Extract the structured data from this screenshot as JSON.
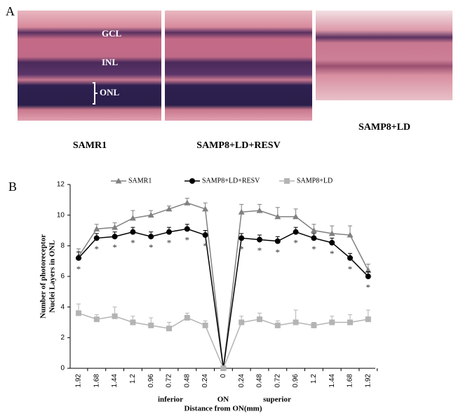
{
  "panel_a": {
    "label": "A",
    "layers": [
      "GCL",
      "INL",
      "ONL"
    ],
    "images": [
      "SAMR1",
      "SAMP8+LD+RESV",
      "SAMP8+LD"
    ]
  },
  "chart_data": {
    "type": "line",
    "panel_label": "B",
    "ylabel": [
      "Number of photoreceptor",
      "Nuclei Layers in ONL"
    ],
    "xlabel": "Distance from ON(mm)",
    "annotations": [
      "inferior",
      "ON",
      "superior"
    ],
    "categories": [
      "1.92",
      "1.68",
      "1.44",
      "1.2",
      "0.96",
      "0.72",
      "0.48",
      "0.24",
      "0",
      "0.24",
      "0.48",
      "0.72",
      "0.96",
      "1.2",
      "1.44",
      "1.68",
      "1.92"
    ],
    "ylim": [
      0,
      12
    ],
    "yticks": [
      0,
      2,
      4,
      6,
      8,
      10,
      12
    ],
    "legend": "top",
    "grid": false,
    "series": [
      {
        "name": "SAMR1",
        "color": "#808080",
        "marker": "triangle",
        "values": [
          7.3,
          9.1,
          9.2,
          9.8,
          10.0,
          10.4,
          10.8,
          10.4,
          0,
          10.2,
          10.3,
          9.9,
          9.9,
          9.0,
          8.8,
          8.7,
          6.4
        ],
        "errors": [
          0.5,
          0.3,
          0.3,
          0.5,
          0.3,
          0.2,
          0.3,
          0.4,
          0,
          0.5,
          0.4,
          0.6,
          0.5,
          0.4,
          0.5,
          0.6,
          0.4
        ]
      },
      {
        "name": "SAMP8+LD+RESV",
        "color": "#000000",
        "marker": "circle",
        "values": [
          7.2,
          8.5,
          8.6,
          8.9,
          8.6,
          8.9,
          9.1,
          8.7,
          0,
          8.5,
          8.4,
          8.3,
          8.9,
          8.5,
          8.2,
          7.2,
          6.0
        ],
        "errors": [
          0.4,
          0.3,
          0.3,
          0.3,
          0.3,
          0.3,
          0.3,
          0.3,
          0,
          0.3,
          0.3,
          0.3,
          0.3,
          0.3,
          0.3,
          0.3,
          0.3
        ],
        "significance": [
          "*",
          "*",
          "*",
          "*",
          "*",
          "*",
          "*",
          "*",
          null,
          "*",
          "*",
          "*",
          "*",
          "*",
          "*",
          "*",
          "*"
        ]
      },
      {
        "name": "SAMP8+LD",
        "color": "#b4b4b4",
        "marker": "square",
        "values": [
          3.6,
          3.2,
          3.4,
          3.0,
          2.8,
          2.6,
          3.3,
          2.8,
          0,
          3.0,
          3.2,
          2.8,
          3.0,
          2.8,
          3.0,
          3.0,
          3.2
        ],
        "errors": [
          0.6,
          0.3,
          0.6,
          0.4,
          0.5,
          0.4,
          0.3,
          0.3,
          0,
          0.4,
          0.4,
          0.3,
          0.8,
          0.2,
          0.4,
          0.5,
          0.6
        ]
      }
    ]
  }
}
